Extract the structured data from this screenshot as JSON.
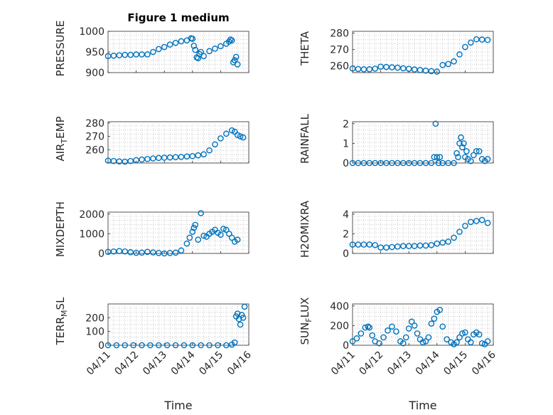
{
  "figure": {
    "title": "Figure 1 medium",
    "x_tick_labels": [
      "04/11",
      "04/12",
      "04/13",
      "04/14",
      "04/15",
      "04/16"
    ],
    "xlabel": "Time",
    "marker_color": "#0072bd"
  },
  "chart_data": [
    {
      "type": "scatter",
      "ylabel": "PRESSURE",
      "yticks": [
        900,
        950,
        1000
      ],
      "ylim": [
        900,
        1000
      ],
      "xlim": [
        0,
        5
      ],
      "grid": true,
      "x": [
        0.0,
        0.2,
        0.4,
        0.6,
        0.8,
        1.0,
        1.2,
        1.4,
        1.6,
        1.8,
        2.0,
        2.2,
        2.4,
        2.6,
        2.8,
        2.95,
        3.0,
        3.05,
        3.1,
        3.15,
        3.2,
        3.25,
        3.3,
        3.4,
        3.6,
        3.8,
        4.0,
        4.2,
        4.3,
        4.35,
        4.4,
        4.45,
        4.5,
        4.55,
        4.6
      ],
      "y": [
        940,
        941,
        942,
        943,
        943,
        944,
        944,
        944,
        950,
        957,
        962,
        968,
        972,
        976,
        978,
        983,
        982,
        965,
        955,
        937,
        935,
        945,
        950,
        940,
        952,
        958,
        964,
        970,
        975,
        980,
        978,
        925,
        930,
        938,
        920
      ]
    },
    {
      "type": "scatter",
      "ylabel": "THETA",
      "yticks": [
        260,
        270,
        280
      ],
      "ylim": [
        256,
        281
      ],
      "xlim": [
        0,
        5
      ],
      "grid": true,
      "x": [
        0.0,
        0.2,
        0.4,
        0.6,
        0.8,
        1.0,
        1.2,
        1.4,
        1.6,
        1.8,
        2.0,
        2.2,
        2.4,
        2.6,
        2.8,
        3.0,
        3.2,
        3.4,
        3.6,
        3.8,
        4.0,
        4.2,
        4.4,
        4.6,
        4.8
      ],
      "y": [
        258.5,
        258.2,
        258.0,
        258.0,
        258.4,
        259.6,
        259.4,
        259.2,
        259.0,
        258.6,
        258.3,
        257.9,
        257.6,
        257.2,
        256.9,
        256.6,
        260.6,
        261.2,
        262.8,
        267.0,
        271.5,
        274.2,
        276.2,
        276.0,
        275.8
      ]
    },
    {
      "type": "scatter",
      "ylabel": "AIR_TEMP",
      "yticks": [
        260,
        270,
        280
      ],
      "ylim": [
        250,
        281
      ],
      "xlim": [
        0,
        5
      ],
      "grid": true,
      "x": [
        0.0,
        0.2,
        0.4,
        0.6,
        0.8,
        1.0,
        1.2,
        1.4,
        1.6,
        1.8,
        2.0,
        2.2,
        2.4,
        2.6,
        2.8,
        3.0,
        3.2,
        3.4,
        3.6,
        3.8,
        4.0,
        4.2,
        4.4,
        4.5,
        4.6,
        4.7,
        4.8
      ],
      "y": [
        251.8,
        251.5,
        251.2,
        251.0,
        251.5,
        252.2,
        252.6,
        253.0,
        253.4,
        253.8,
        254.0,
        254.2,
        254.4,
        254.6,
        254.9,
        255.2,
        255.8,
        256.5,
        259.5,
        264.0,
        268.5,
        272.0,
        274.5,
        273.5,
        271.0,
        270.0,
        269.2
      ]
    },
    {
      "type": "scatter",
      "ylabel": "RAINFALL",
      "yticks": [
        0,
        1,
        2
      ],
      "ylim": [
        0,
        2.1
      ],
      "xlim": [
        0,
        5
      ],
      "grid": true,
      "x": [
        0.0,
        0.2,
        0.4,
        0.6,
        0.8,
        1.0,
        1.2,
        1.4,
        1.6,
        1.8,
        2.0,
        2.2,
        2.4,
        2.6,
        2.8,
        2.9,
        2.95,
        3.0,
        3.05,
        3.1,
        3.2,
        3.4,
        3.6,
        3.7,
        3.75,
        3.8,
        3.85,
        3.9,
        3.95,
        4.0,
        4.05,
        4.1,
        4.2,
        4.3,
        4.4,
        4.5,
        4.6,
        4.7,
        4.8
      ],
      "y": [
        0,
        0,
        0,
        0,
        0,
        0,
        0,
        0,
        0,
        0,
        0,
        0,
        0,
        0,
        0,
        0.3,
        2.0,
        0.3,
        0,
        0.3,
        0,
        0,
        0,
        0.5,
        0.3,
        1.0,
        1.3,
        0.8,
        1.0,
        0.3,
        0.6,
        0.2,
        0.1,
        0.4,
        0.6,
        0.6,
        0.2,
        0.1,
        0.2
      ]
    },
    {
      "type": "scatter",
      "ylabel": "MIXDEPTH",
      "yticks": [
        0,
        1000,
        2000
      ],
      "ylim": [
        0,
        2100
      ],
      "xlim": [
        0,
        5
      ],
      "grid": true,
      "x": [
        0.0,
        0.2,
        0.4,
        0.6,
        0.8,
        1.0,
        1.2,
        1.4,
        1.6,
        1.8,
        2.0,
        2.2,
        2.4,
        2.6,
        2.8,
        2.9,
        3.0,
        3.05,
        3.1,
        3.2,
        3.3,
        3.4,
        3.5,
        3.6,
        3.7,
        3.8,
        3.9,
        4.0,
        4.1,
        4.2,
        4.3,
        4.4,
        4.5,
        4.6
      ],
      "y": [
        80,
        100,
        120,
        100,
        60,
        30,
        40,
        80,
        50,
        20,
        0,
        20,
        40,
        150,
        500,
        800,
        1100,
        1300,
        1450,
        700,
        2050,
        900,
        850,
        1000,
        1100,
        1200,
        1050,
        950,
        1250,
        1200,
        1000,
        800,
        600,
        700
      ]
    },
    {
      "type": "scatter",
      "ylabel": "H2OMIXRA",
      "yticks": [
        0,
        2,
        4
      ],
      "ylim": [
        0,
        4.2
      ],
      "xlim": [
        0,
        5
      ],
      "grid": true,
      "x": [
        0.0,
        0.2,
        0.4,
        0.6,
        0.8,
        1.0,
        1.2,
        1.4,
        1.6,
        1.8,
        2.0,
        2.2,
        2.4,
        2.6,
        2.8,
        3.0,
        3.2,
        3.4,
        3.6,
        3.8,
        4.0,
        4.2,
        4.4,
        4.6,
        4.8
      ],
      "y": [
        0.9,
        0.9,
        0.9,
        0.9,
        0.85,
        0.6,
        0.6,
        0.65,
        0.7,
        0.75,
        0.75,
        0.75,
        0.8,
        0.8,
        0.85,
        1.0,
        1.1,
        1.2,
        1.6,
        2.2,
        2.8,
        3.2,
        3.3,
        3.4,
        3.1
      ]
    },
    {
      "type": "scatter",
      "ylabel": "TERR_MSL",
      "yticks": [
        0,
        100,
        200
      ],
      "ylim": [
        0,
        300
      ],
      "xlim": [
        0,
        5
      ],
      "grid": true,
      "x": [
        0.0,
        0.3,
        0.6,
        0.9,
        1.2,
        1.5,
        1.8,
        2.1,
        2.4,
        2.7,
        3.0,
        3.3,
        3.6,
        3.9,
        4.2,
        4.4,
        4.5,
        4.55,
        4.6,
        4.65,
        4.7,
        4.75,
        4.8,
        4.85
      ],
      "y": [
        0,
        0,
        0,
        0,
        0,
        0,
        0,
        0,
        0,
        0,
        0,
        0,
        0,
        0,
        0,
        5,
        20,
        210,
        230,
        190,
        150,
        220,
        200,
        280
      ]
    },
    {
      "type": "scatter",
      "ylabel": "SUN_FLUX",
      "yticks": [
        0,
        200,
        400
      ],
      "ylim": [
        0,
        420
      ],
      "xlim": [
        0,
        5
      ],
      "grid": true,
      "x": [
        0.0,
        0.15,
        0.3,
        0.45,
        0.55,
        0.6,
        0.7,
        0.8,
        0.95,
        1.1,
        1.25,
        1.4,
        1.55,
        1.7,
        1.8,
        1.9,
        2.0,
        2.1,
        2.2,
        2.3,
        2.4,
        2.5,
        2.6,
        2.7,
        2.8,
        2.9,
        3.0,
        3.1,
        3.2,
        3.35,
        3.5,
        3.6,
        3.7,
        3.8,
        3.9,
        4.0,
        4.1,
        4.2,
        4.3,
        4.4,
        4.5,
        4.6,
        4.7,
        4.8
      ],
      "y": [
        40,
        70,
        120,
        180,
        190,
        180,
        100,
        40,
        20,
        80,
        150,
        190,
        140,
        40,
        20,
        80,
        170,
        240,
        200,
        120,
        60,
        30,
        40,
        80,
        220,
        270,
        340,
        360,
        190,
        60,
        30,
        10,
        30,
        80,
        120,
        130,
        60,
        30,
        110,
        130,
        110,
        20,
        10,
        40
      ]
    }
  ]
}
